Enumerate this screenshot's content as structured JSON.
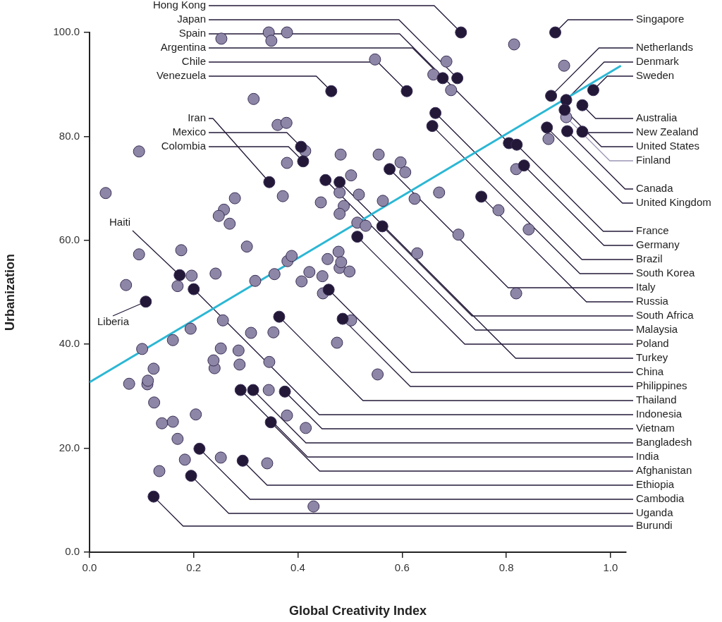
{
  "chart_data": {
    "type": "scatter",
    "xlabel": "Global Creativity Index",
    "ylabel": "Urbanization",
    "xlim": [
      0,
      1.03
    ],
    "ylim": [
      0,
      100
    ],
    "xticks": [
      {
        "value": 0,
        "label": "0.0"
      },
      {
        "value": 0.2,
        "label": "0.2"
      },
      {
        "value": 0.4,
        "label": "0.4"
      },
      {
        "value": 0.6,
        "label": "0.6"
      },
      {
        "value": 0.8,
        "label": "0.8"
      },
      {
        "value": 1,
        "label": "1.0"
      }
    ],
    "yticks": [
      {
        "value": 0,
        "label": "0.0"
      },
      {
        "value": 20,
        "label": "20.0"
      },
      {
        "value": 40,
        "label": "40.0"
      },
      {
        "value": 60,
        "label": "60.0"
      },
      {
        "value": 80,
        "label": "80.0"
      },
      {
        "value": 100,
        "label": "100.0"
      }
    ],
    "grid": false,
    "series": [
      {
        "color": "#8e86a6",
        "marker": "circle",
        "x": [
          0.031,
          0.095,
          0.315,
          0.344,
          0.379,
          0.349,
          0.253,
          0.548,
          0.66,
          0.685,
          0.694,
          0.815,
          0.911,
          0.361,
          0.378,
          0.414,
          0.379,
          0.482,
          0.555,
          0.597,
          0.606,
          0.502,
          0.517,
          0.48,
          0.563,
          0.371,
          0.444,
          0.488,
          0.48,
          0.279,
          0.258,
          0.248,
          0.269,
          0.514,
          0.53,
          0.624,
          0.671,
          0.708,
          0.785,
          0.819,
          0.843,
          0.819,
          0.881,
          0.629,
          0.176,
          0.095,
          0.07,
          0.169,
          0.196,
          0.242,
          0.302,
          0.318,
          0.355,
          0.38,
          0.388,
          0.407,
          0.422,
          0.447,
          0.457,
          0.478,
          0.48,
          0.483,
          0.499,
          0.448,
          0.502,
          0.475,
          0.553,
          0.256,
          0.194,
          0.16,
          0.101,
          0.31,
          0.353,
          0.345,
          0.286,
          0.252,
          0.24,
          0.238,
          0.288,
          0.076,
          0.111,
          0.112,
          0.123,
          0.124,
          0.139,
          0.16,
          0.204,
          0.169,
          0.183,
          0.134,
          0.252,
          0.341,
          0.344,
          0.379,
          0.415,
          0.43
        ],
        "y": [
          69.1,
          77.1,
          87.2,
          100,
          100,
          98.4,
          98.8,
          94.8,
          91.9,
          94.4,
          88.9,
          97.7,
          93.6,
          82.2,
          82.6,
          77.2,
          74.9,
          76.5,
          76.5,
          75.0,
          73.1,
          72.5,
          68.8,
          69.2,
          67.6,
          68.5,
          67.3,
          66.6,
          65.1,
          68.1,
          65.9,
          64.7,
          63.2,
          63.4,
          62.8,
          68.0,
          69.2,
          61.1,
          65.8,
          73.7,
          62.1,
          49.8,
          79.5,
          57.5,
          58.1,
          57.3,
          51.4,
          51.2,
          53.2,
          53.6,
          58.8,
          52.2,
          53.5,
          56.0,
          57.0,
          52.1,
          53.9,
          53.1,
          56.4,
          57.8,
          54.7,
          55.8,
          54.0,
          49.8,
          44.6,
          40.3,
          34.2,
          44.6,
          43.0,
          40.8,
          39.1,
          42.2,
          42.3,
          36.6,
          38.8,
          39.2,
          35.4,
          36.9,
          36.1,
          32.4,
          32.3,
          33.0,
          35.3,
          28.8,
          24.8,
          25.1,
          26.5,
          21.8,
          17.8,
          15.6,
          18.2,
          17.1,
          31.2,
          26.3,
          23.9,
          8.8
        ]
      },
      {
        "color": "#231838",
        "marker": "circle",
        "labels": [
          "Hong Kong",
          "Japan",
          "Spain",
          "Argentina",
          "Chile",
          "Venezuela",
          "Iran",
          "Mexico",
          "Colombia",
          "Haiti",
          "Liberia",
          "Singapore",
          "Netherlands",
          "Denmark",
          "Sweden",
          "Australia",
          "New Zealand",
          "United States",
          "Canada",
          "United Kingdom",
          "France",
          "Germany",
          "Brazil",
          "South Korea",
          "Italy",
          "Russia",
          "South Africa",
          "Malaysia",
          "Poland",
          "Turkey",
          "China",
          "Philippines",
          "Thailand",
          "Indonesia",
          "Vietnam",
          "Bangladesh",
          "India",
          "Afghanistan",
          "Ethiopia",
          "Cambodia",
          "Uganda",
          "Burundi"
        ],
        "x": [
          0.713,
          0.706,
          0.805,
          0.678,
          0.609,
          0.464,
          0.345,
          0.406,
          0.41,
          0.173,
          0.108,
          0.894,
          0.886,
          0.915,
          0.967,
          0.946,
          0.946,
          0.912,
          0.917,
          0.878,
          0.82,
          0.834,
          0.664,
          0.658,
          0.576,
          0.752,
          0.562,
          0.453,
          0.514,
          0.48,
          0.459,
          0.486,
          0.364,
          0.2,
          0.375,
          0.314,
          0.29,
          0.348,
          0.294,
          0.211,
          0.195,
          0.123
        ],
        "y": [
          100,
          91.2,
          78.7,
          91.2,
          88.7,
          88.7,
          71.2,
          78.0,
          75.2,
          53.3,
          48.2,
          100,
          87.8,
          87.0,
          88.9,
          86.0,
          80.9,
          85.1,
          81.0,
          81.7,
          78.4,
          74.4,
          84.5,
          82.0,
          73.7,
          68.4,
          62.7,
          71.6,
          60.7,
          71.2,
          50.5,
          44.9,
          45.3,
          50.6,
          30.9,
          31.2,
          31.2,
          25.0,
          17.6,
          19.9,
          14.7,
          10.7
        ]
      },
      {
        "color": "#9d95b5",
        "marker": "circle",
        "labels": [
          "Finland"
        ],
        "x": [
          0.915
        ],
        "y": [
          83.7
        ]
      },
      {
        "type": "line",
        "color": "#2bb7d4",
        "line_style": "solid",
        "x": [
          0,
          1.02
        ],
        "y": [
          32.7,
          93.6
        ]
      }
    ]
  }
}
